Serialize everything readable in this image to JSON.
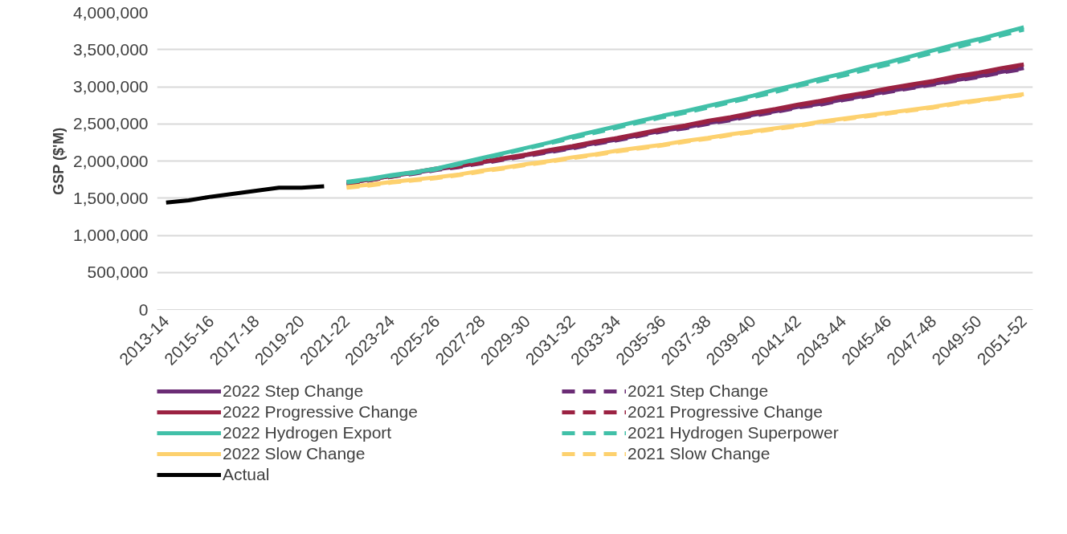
{
  "chart_data": {
    "type": "line",
    "ylabel": "GSP ($'M)",
    "categories": [
      "2013-14",
      null,
      "2015-16",
      null,
      "2017-18",
      null,
      "2019-20",
      null,
      "2021-22",
      null,
      "2023-24",
      null,
      "2025-26",
      null,
      "2027-28",
      null,
      "2029-30",
      null,
      "2031-32",
      null,
      "2033-34",
      null,
      "2035-36",
      null,
      "2037-38",
      null,
      "2039-40",
      null,
      "2041-42",
      null,
      "2043-44",
      null,
      "2045-46",
      null,
      "2047-48",
      null,
      "2049-50",
      null,
      "2051-52"
    ],
    "ylim": [
      0,
      4000000
    ],
    "yticks": [
      {
        "value": 0,
        "label": "0"
      },
      {
        "value": 500000,
        "label": "500,000"
      },
      {
        "value": 1000000,
        "label": "1,000,000"
      },
      {
        "value": 1500000,
        "label": "1,500,000"
      },
      {
        "value": 2000000,
        "label": "2,000,000"
      },
      {
        "value": 2500000,
        "label": "2,500,000"
      },
      {
        "value": 3000000,
        "label": "3,000,000"
      },
      {
        "value": 3500000,
        "label": "3,500,000"
      },
      {
        "value": 4000000,
        "label": "4,000,000"
      }
    ],
    "grid": "y",
    "legend": "bottom",
    "marker": "none",
    "series": [
      {
        "name": "2022 Step Change",
        "color": "#6b2c75",
        "line_style": "solid",
        "values": [
          null,
          null,
          null,
          null,
          null,
          null,
          null,
          null,
          1700000,
          1750000,
          1800000,
          1840000,
          1890000,
          1930000,
          1980000,
          2030000,
          2080000,
          2130000,
          2180000,
          2240000,
          2290000,
          2350000,
          2410000,
          2450000,
          2510000,
          2560000,
          2620000,
          2670000,
          2730000,
          2770000,
          2830000,
          2880000,
          2940000,
          2990000,
          3040000,
          3090000,
          3140000,
          3200000,
          3250000
        ]
      },
      {
        "name": "2021 Step Change",
        "color": "#6b2c75",
        "line_style": "dashed",
        "values": [
          null,
          null,
          null,
          null,
          null,
          null,
          null,
          null,
          1690000,
          1740000,
          1790000,
          1830000,
          1880000,
          1920000,
          1970000,
          2020000,
          2070000,
          2120000,
          2170000,
          2230000,
          2280000,
          2340000,
          2400000,
          2440000,
          2500000,
          2550000,
          2610000,
          2660000,
          2720000,
          2760000,
          2820000,
          2870000,
          2930000,
          2980000,
          3030000,
          3080000,
          3130000,
          3190000,
          3240000
        ]
      },
      {
        "name": "2022 Progressive Change",
        "color": "#9b2242",
        "line_style": "solid",
        "values": [
          null,
          null,
          null,
          null,
          null,
          null,
          null,
          null,
          1700000,
          1750000,
          1800000,
          1850000,
          1900000,
          1940000,
          1990000,
          2040000,
          2090000,
          2150000,
          2200000,
          2260000,
          2310000,
          2370000,
          2430000,
          2480000,
          2540000,
          2590000,
          2650000,
          2700000,
          2760000,
          2810000,
          2870000,
          2920000,
          2980000,
          3030000,
          3080000,
          3140000,
          3190000,
          3250000,
          3300000
        ]
      },
      {
        "name": "2021 Progressive Change",
        "color": "#9b2242",
        "line_style": "dashed",
        "values": [
          null,
          null,
          null,
          null,
          null,
          null,
          null,
          null,
          1690000,
          1740000,
          1790000,
          1840000,
          1890000,
          1930000,
          1980000,
          2030000,
          2080000,
          2140000,
          2190000,
          2250000,
          2300000,
          2360000,
          2420000,
          2470000,
          2530000,
          2580000,
          2640000,
          2690000,
          2750000,
          2800000,
          2860000,
          2910000,
          2970000,
          3020000,
          3070000,
          3130000,
          3180000,
          3240000,
          3290000
        ]
      },
      {
        "name": "2022 Hydrogen Export",
        "color": "#41c0a8",
        "line_style": "solid",
        "values": [
          null,
          null,
          null,
          null,
          null,
          null,
          null,
          null,
          1720000,
          1760000,
          1810000,
          1850000,
          1900000,
          1970000,
          2040000,
          2110000,
          2180000,
          2250000,
          2330000,
          2400000,
          2470000,
          2540000,
          2610000,
          2670000,
          2740000,
          2810000,
          2880000,
          2960000,
          3030000,
          3110000,
          3180000,
          3260000,
          3330000,
          3410000,
          3490000,
          3570000,
          3640000,
          3720000,
          3800000
        ]
      },
      {
        "name": "2021 Hydrogen Superpower",
        "color": "#41c0a8",
        "line_style": "dashed",
        "values": [
          null,
          null,
          null,
          null,
          null,
          null,
          null,
          null,
          1710000,
          1750000,
          1800000,
          1840000,
          1890000,
          1960000,
          2030000,
          2100000,
          2170000,
          2240000,
          2310000,
          2380000,
          2450000,
          2520000,
          2590000,
          2650000,
          2720000,
          2790000,
          2860000,
          2930000,
          3010000,
          3080000,
          3150000,
          3230000,
          3300000,
          3380000,
          3460000,
          3530000,
          3610000,
          3690000,
          3770000
        ]
      },
      {
        "name": "2022 Slow Change",
        "color": "#fdd16e",
        "line_style": "solid",
        "values": [
          null,
          null,
          null,
          null,
          null,
          null,
          null,
          null,
          1650000,
          1680000,
          1720000,
          1750000,
          1780000,
          1820000,
          1870000,
          1910000,
          1960000,
          2000000,
          2050000,
          2090000,
          2140000,
          2180000,
          2220000,
          2270000,
          2310000,
          2360000,
          2400000,
          2440000,
          2480000,
          2530000,
          2570000,
          2610000,
          2650000,
          2690000,
          2730000,
          2780000,
          2820000,
          2860000,
          2900000
        ]
      },
      {
        "name": "2021 Slow Change",
        "color": "#fdd16e",
        "line_style": "dashed",
        "values": [
          null,
          null,
          null,
          null,
          null,
          null,
          null,
          null,
          1640000,
          1670000,
          1710000,
          1740000,
          1770000,
          1810000,
          1860000,
          1900000,
          1950000,
          1990000,
          2040000,
          2080000,
          2130000,
          2170000,
          2210000,
          2260000,
          2300000,
          2350000,
          2390000,
          2430000,
          2470000,
          2520000,
          2560000,
          2600000,
          2640000,
          2680000,
          2720000,
          2770000,
          2810000,
          2850000,
          2890000
        ]
      },
      {
        "name": "Actual",
        "color": "#000000",
        "line_style": "solid",
        "values": [
          1440000,
          1470000,
          1520000,
          1560000,
          1600000,
          1640000,
          1640000,
          1660000,
          null,
          null,
          null,
          null,
          null,
          null,
          null,
          null,
          null,
          null,
          null,
          null,
          null,
          null,
          null,
          null,
          null,
          null,
          null,
          null,
          null,
          null,
          null,
          null,
          null,
          null,
          null,
          null,
          null,
          null,
          null
        ]
      }
    ]
  }
}
